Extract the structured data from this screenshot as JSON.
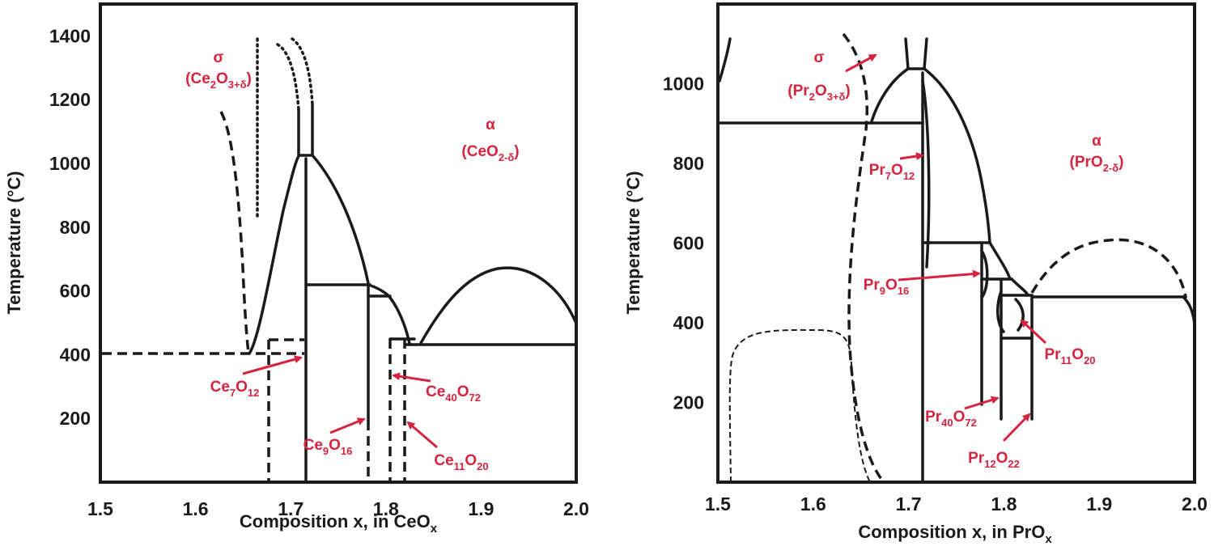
{
  "chart_data": [
    {
      "type": "phase-diagram",
      "xlabel": "Composition x, in CeO",
      "xlabel_sub": "x",
      "ylabel": "Temperature (°C)",
      "xlim": [
        1.5,
        2.0
      ],
      "ylim": [
        0,
        1500
      ],
      "x_ticks": [
        "1.5",
        "1.6",
        "1.7",
        "1.8",
        "1.9",
        "2.0"
      ],
      "y_ticks": [
        "200",
        "400",
        "600",
        "800",
        "1000",
        "1200",
        "1400"
      ],
      "phases": [
        {
          "symbol": "σ",
          "formula": [
            [
              "(Ce",
              ""
            ],
            [
              "2",
              "sub"
            ],
            [
              "O",
              ""
            ],
            [
              "3+δ",
              "sub"
            ],
            [
              ")",
              ""
            ]
          ]
        },
        {
          "symbol": "α",
          "formula": [
            [
              "(CeO",
              ""
            ],
            [
              "2-δ",
              "sub"
            ],
            [
              ")",
              ""
            ]
          ]
        }
      ],
      "compounds": [
        {
          "formula": [
            [
              "Ce",
              ""
            ],
            [
              "7",
              "sub"
            ],
            [
              "O",
              ""
            ],
            [
              "12",
              "sub"
            ]
          ],
          "x": 1.714
        },
        {
          "formula": [
            [
              "Ce",
              ""
            ],
            [
              "9",
              "sub"
            ],
            [
              "O",
              ""
            ],
            [
              "16",
              "sub"
            ]
          ],
          "x": 1.778
        },
        {
          "formula": [
            [
              "Ce",
              ""
            ],
            [
              "40",
              "sub"
            ],
            [
              "O",
              ""
            ],
            [
              "72",
              "sub"
            ]
          ],
          "x": 1.8
        },
        {
          "formula": [
            [
              "Ce",
              ""
            ],
            [
              "11",
              "sub"
            ],
            [
              "O",
              ""
            ],
            [
              "20",
              "sub"
            ]
          ],
          "x": 1.818
        }
      ],
      "invariant_temperatures_c": [
        1020,
        625,
        585,
        455,
        435,
        410
      ]
    },
    {
      "type": "phase-diagram",
      "xlabel": "Composition x, in PrO",
      "xlabel_sub": "x",
      "ylabel": "Temperature (°C)",
      "xlim": [
        1.5,
        2.0
      ],
      "ylim": [
        0,
        1200
      ],
      "x_ticks": [
        "1.5",
        "1.6",
        "1.7",
        "1.8",
        "1.9",
        "2.0"
      ],
      "y_ticks": [
        "200",
        "400",
        "600",
        "800",
        "1000"
      ],
      "phases": [
        {
          "symbol": "σ",
          "formula": [
            [
              "(Pr",
              ""
            ],
            [
              "2",
              "sub"
            ],
            [
              "O",
              ""
            ],
            [
              "3+δ",
              "sub"
            ],
            [
              ")",
              ""
            ]
          ]
        },
        {
          "symbol": "α",
          "formula": [
            [
              "(PrO",
              ""
            ],
            [
              "2-δ",
              "sub"
            ],
            [
              ")",
              ""
            ]
          ]
        }
      ],
      "compounds": [
        {
          "formula": [
            [
              "Pr",
              ""
            ],
            [
              "7",
              "sub"
            ],
            [
              "O",
              ""
            ],
            [
              "12",
              "sub"
            ]
          ],
          "x": 1.714
        },
        {
          "formula": [
            [
              "Pr",
              ""
            ],
            [
              "9",
              "sub"
            ],
            [
              "O",
              ""
            ],
            [
              "16",
              "sub"
            ]
          ],
          "x": 1.778
        },
        {
          "formula": [
            [
              "Pr",
              ""
            ],
            [
              "11",
              "sub"
            ],
            [
              "O",
              ""
            ],
            [
              "20",
              "sub"
            ]
          ],
          "x": 1.818
        },
        {
          "formula": [
            [
              "Pr",
              ""
            ],
            [
              "40",
              "sub"
            ],
            [
              "O",
              ""
            ],
            [
              "72",
              "sub"
            ]
          ],
          "x": 1.8
        },
        {
          "formula": [
            [
              "Pr",
              ""
            ],
            [
              "12",
              "sub"
            ],
            [
              "O",
              ""
            ],
            [
              "22",
              "sub"
            ]
          ],
          "x": 1.833
        }
      ],
      "invariant_temperatures_c": [
        1055,
        905,
        600,
        510,
        465,
        360
      ]
    }
  ],
  "colors": {
    "label": "#d6243f",
    "line": "#1a1a1a"
  }
}
